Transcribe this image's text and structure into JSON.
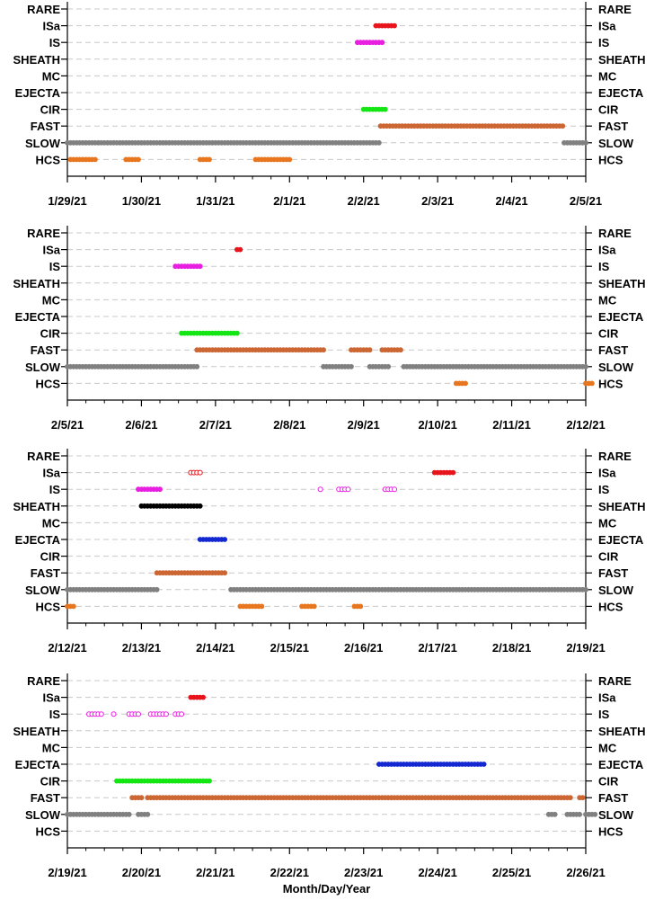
{
  "chart_data": [
    {
      "type": "scatter",
      "panel": 1,
      "categories": [
        "RARE",
        "ISa",
        "IS",
        "SHEATH",
        "MC",
        "EJECTA",
        "CIR",
        "FAST",
        "SLOW",
        "HCS"
      ],
      "x_range": [
        "1/29/21",
        "2/5/21"
      ],
      "xticks": [
        "1/29/21",
        "1/30/21",
        "1/31/21",
        "2/1/21",
        "2/2/21",
        "2/3/21",
        "2/4/21",
        "2/5/21"
      ],
      "xlabel": "",
      "grid": true,
      "series": [
        {
          "category": "ISa",
          "color": "#e8141c",
          "marker": "filled",
          "intervals": [
            [
              "2/2/21 04:00",
              "2/2/21 10:30"
            ]
          ]
        },
        {
          "category": "IS",
          "color": "#e81ee0",
          "marker": "filled",
          "intervals": [
            [
              "2/1/21 22:00",
              "2/2/21 06:00"
            ]
          ]
        },
        {
          "category": "CIR",
          "color": "#14e614",
          "marker": "filled",
          "intervals": [
            [
              "2/2/21 00:00",
              "2/2/21 07:00"
            ]
          ]
        },
        {
          "category": "FAST",
          "color": "#cc6633",
          "marker": "filled",
          "intervals": [
            [
              "2/2/21 05:30",
              "2/4/21 17:00"
            ]
          ]
        },
        {
          "category": "SLOW",
          "color": "#808080",
          "marker": "filled",
          "intervals": [
            [
              "1/29/21 00:00",
              "2/2/21 05:30"
            ],
            [
              "2/4/21 17:00",
              "2/5/21 00:00"
            ]
          ]
        },
        {
          "category": "HCS",
          "color": "#e8761e",
          "marker": "filled",
          "intervals": [
            [
              "1/29/21 01:00",
              "1/29/21 09:00"
            ],
            [
              "1/29/21 19:00",
              "1/29/21 23:00"
            ],
            [
              "1/30/21 19:00",
              "1/30/21 22:00"
            ],
            [
              "1/31/21 13:00",
              "2/1/21 00:00"
            ]
          ]
        }
      ]
    },
    {
      "type": "scatter",
      "panel": 2,
      "categories": [
        "RARE",
        "ISa",
        "IS",
        "SHEATH",
        "MC",
        "EJECTA",
        "CIR",
        "FAST",
        "SLOW",
        "HCS"
      ],
      "x_range": [
        "2/5/21",
        "2/12/21"
      ],
      "xticks": [
        "2/5/21",
        "2/6/21",
        "2/7/21",
        "2/8/21",
        "2/9/21",
        "2/10/21",
        "2/11/21",
        "2/12/21"
      ],
      "xlabel": "",
      "grid": true,
      "series": [
        {
          "category": "ISa",
          "color": "#e8141c",
          "marker": "filled",
          "intervals": [
            [
              "2/7/21 07:00",
              "2/7/21 08:00"
            ]
          ]
        },
        {
          "category": "IS",
          "color": "#e81ee0",
          "marker": "filled",
          "intervals": [
            [
              "2/6/21 11:00",
              "2/6/21 19:00"
            ]
          ]
        },
        {
          "category": "CIR",
          "color": "#14e614",
          "marker": "filled",
          "intervals": [
            [
              "2/6/21 13:00",
              "2/7/21 07:00"
            ]
          ]
        },
        {
          "category": "FAST",
          "color": "#cc6633",
          "marker": "filled",
          "intervals": [
            [
              "2/6/21 18:00",
              "2/8/21 11:00"
            ],
            [
              "2/8/21 20:00",
              "2/9/21 02:00"
            ],
            [
              "2/9/21 06:00",
              "2/9/21 12:00"
            ]
          ]
        },
        {
          "category": "SLOW",
          "color": "#808080",
          "marker": "filled",
          "intervals": [
            [
              "2/5/21 00:00",
              "2/6/21 18:00"
            ],
            [
              "2/8/21 11:00",
              "2/8/21 20:00"
            ],
            [
              "2/9/21 02:00",
              "2/9/21 08:00"
            ],
            [
              "2/9/21 13:00",
              "2/12/21 00:00"
            ]
          ]
        },
        {
          "category": "HCS",
          "color": "#e8761e",
          "marker": "filled",
          "intervals": [
            [
              "2/10/21 06:00",
              "2/10/21 09:00"
            ],
            [
              "2/12/21 00:00",
              "2/12/21 02:00"
            ]
          ]
        }
      ]
    },
    {
      "type": "scatter",
      "panel": 3,
      "categories": [
        "RARE",
        "ISa",
        "IS",
        "SHEATH",
        "MC",
        "EJECTA",
        "CIR",
        "FAST",
        "SLOW",
        "HCS"
      ],
      "x_range": [
        "2/12/21",
        "2/19/21"
      ],
      "xticks": [
        "2/12/21",
        "2/13/21",
        "2/14/21",
        "2/15/21",
        "2/16/21",
        "2/17/21",
        "2/18/21",
        "2/19/21"
      ],
      "xlabel": "",
      "grid": true,
      "series": [
        {
          "category": "ISa",
          "color": "#e8141c",
          "marker": "open",
          "intervals": [
            [
              "2/13/21 16:00",
              "2/13/21 19:00"
            ]
          ]
        },
        {
          "category": "ISa",
          "color": "#e8141c",
          "marker": "filled",
          "intervals": [
            [
              "2/16/21 23:00",
              "2/17/21 05:00"
            ]
          ]
        },
        {
          "category": "IS",
          "color": "#e81ee0",
          "marker": "filled",
          "intervals": [
            [
              "2/12/21 23:00",
              "2/13/21 06:00"
            ]
          ]
        },
        {
          "category": "IS",
          "color": "#e81ee0",
          "marker": "open",
          "intervals": [
            [
              "2/15/21 10:00",
              "2/15/21 10:00"
            ],
            [
              "2/15/21 16:00",
              "2/15/21 19:00"
            ],
            [
              "2/16/21 07:00",
              "2/16/21 10:00"
            ]
          ]
        },
        {
          "category": "SHEATH",
          "color": "#000000",
          "marker": "filled",
          "intervals": [
            [
              "2/13/21 00:00",
              "2/13/21 19:00"
            ]
          ]
        },
        {
          "category": "EJECTA",
          "color": "#1428d2",
          "marker": "filled",
          "intervals": [
            [
              "2/13/21 19:00",
              "2/14/21 03:00"
            ]
          ]
        },
        {
          "category": "FAST",
          "color": "#cc6633",
          "marker": "filled",
          "intervals": [
            [
              "2/13/21 05:00",
              "2/14/21 03:00"
            ]
          ]
        },
        {
          "category": "SLOW",
          "color": "#808080",
          "marker": "filled",
          "intervals": [
            [
              "2/12/21 00:00",
              "2/13/21 05:00"
            ],
            [
              "2/14/21 05:00",
              "2/19/21 00:00"
            ]
          ]
        },
        {
          "category": "HCS",
          "color": "#e8761e",
          "marker": "filled",
          "intervals": [
            [
              "2/12/21 00:00",
              "2/12/21 02:00"
            ],
            [
              "2/14/21 08:00",
              "2/14/21 15:00"
            ],
            [
              "2/15/21 04:00",
              "2/15/21 08:00"
            ],
            [
              "2/15/21 21:00",
              "2/15/21 23:00"
            ]
          ]
        }
      ]
    },
    {
      "type": "scatter",
      "panel": 4,
      "categories": [
        "RARE",
        "ISa",
        "IS",
        "SHEATH",
        "MC",
        "EJECTA",
        "CIR",
        "FAST",
        "SLOW",
        "HCS"
      ],
      "x_range": [
        "2/19/21",
        "2/26/21"
      ],
      "xticks": [
        "2/19/21",
        "2/20/21",
        "2/21/21",
        "2/22/21",
        "2/23/21",
        "2/24/21",
        "2/25/21",
        "2/26/21"
      ],
      "xlabel": "Month/Day/Year",
      "grid": true,
      "series": [
        {
          "category": "ISa",
          "color": "#e8141c",
          "marker": "filled",
          "intervals": [
            [
              "2/20/21 16:00",
              "2/20/21 20:00"
            ]
          ]
        },
        {
          "category": "IS",
          "color": "#e81ee0",
          "marker": "open",
          "intervals": [
            [
              "2/19/21 07:00",
              "2/19/21 11:00"
            ],
            [
              "2/19/21 15:00",
              "2/19/21 15:00"
            ],
            [
              "2/19/21 20:00",
              "2/19/21 23:00"
            ],
            [
              "2/20/21 03:00",
              "2/20/21 08:00"
            ],
            [
              "2/20/21 11:00",
              "2/20/21 13:00"
            ]
          ]
        },
        {
          "category": "EJECTA",
          "color": "#1428d2",
          "marker": "filled",
          "intervals": [
            [
              "2/23/21 05:00",
              "2/24/21 15:00"
            ]
          ]
        },
        {
          "category": "CIR",
          "color": "#14e614",
          "marker": "filled",
          "intervals": [
            [
              "2/19/21 16:00",
              "2/20/21 22:00"
            ]
          ]
        },
        {
          "category": "FAST",
          "color": "#cc6633",
          "marker": "filled",
          "intervals": [
            [
              "2/19/21 21:00",
              "2/20/21 00:00"
            ],
            [
              "2/20/21 02:00",
              "2/25/21 13:00"
            ],
            [
              "2/25/21 14:00",
              "2/25/21 19:00"
            ],
            [
              "2/25/21 22:00",
              "2/25/21 23:00"
            ]
          ]
        },
        {
          "category": "SLOW",
          "color": "#808080",
          "marker": "filled",
          "intervals": [
            [
              "2/19/21 00:00",
              "2/19/21 20:00"
            ],
            [
              "2/19/21 23:00",
              "2/20/21 02:00"
            ],
            [
              "2/25/21 12:00",
              "2/25/21 14:00"
            ],
            [
              "2/25/21 18:00",
              "2/25/21 22:00"
            ],
            [
              "2/26/21 00:00",
              "2/26/21 03:00"
            ]
          ]
        }
      ]
    }
  ]
}
